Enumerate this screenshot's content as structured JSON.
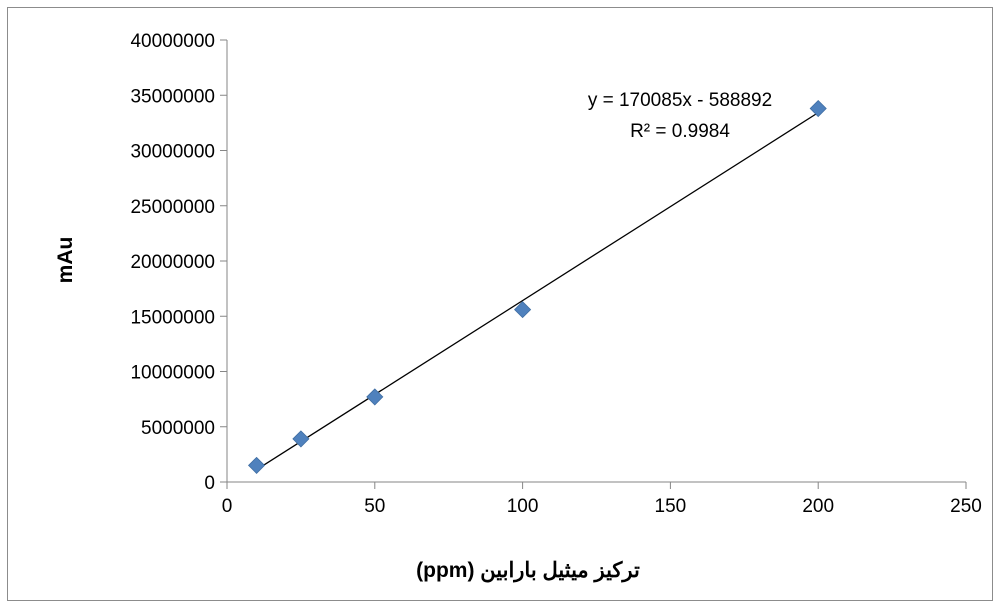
{
  "chart_data": {
    "type": "scatter",
    "xlabel": "تركيز ميثيل بارابين (ppm)",
    "ylabel": "mAu",
    "xlim": [
      0,
      250
    ],
    "ylim": [
      0,
      40000000
    ],
    "x_ticks": [
      0,
      50,
      100,
      150,
      200,
      250
    ],
    "y_ticks": [
      0,
      5000000,
      10000000,
      15000000,
      20000000,
      25000000,
      30000000,
      35000000,
      40000000
    ],
    "x_tick_labels": [
      "0",
      "50",
      "100",
      "150",
      "200",
      "250"
    ],
    "y_tick_labels": [
      "0",
      "5000000",
      "10000000",
      "15000000",
      "20000000",
      "25000000",
      "30000000",
      "35000000",
      "40000000"
    ],
    "grid": false,
    "legend": "none",
    "series": [
      {
        "points": [
          {
            "x": 10,
            "y": 1500000
          },
          {
            "x": 25,
            "y": 3900000
          },
          {
            "x": 50,
            "y": 7700000
          },
          {
            "x": 100,
            "y": 15600000
          },
          {
            "x": 200,
            "y": 33800000
          }
        ],
        "marker": "diamond",
        "color": "#4f81bd"
      }
    ],
    "trendline": {
      "type": "linear",
      "slope": 170085,
      "intercept": -588892,
      "x_range": [
        10,
        200
      ],
      "color": "#000000",
      "equation": "y = 170085x - 588892",
      "r_squared": "R² = 0.9984"
    }
  }
}
